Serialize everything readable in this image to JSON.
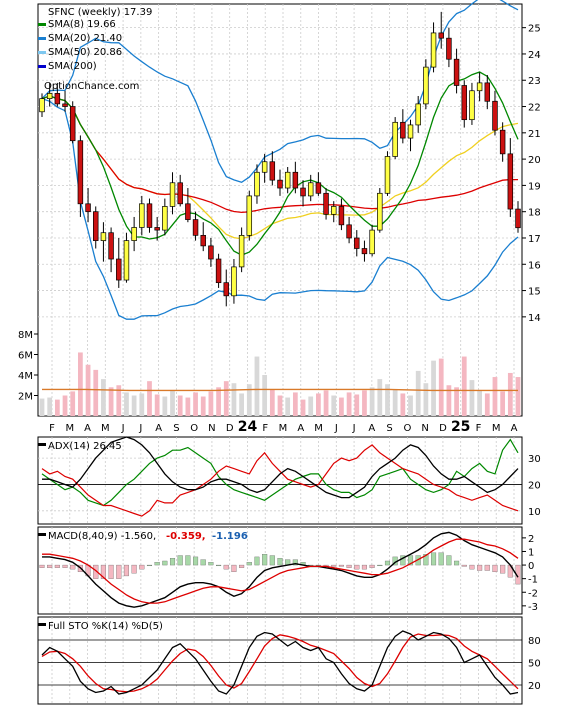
{
  "chart_data": {
    "type": "financial-multi-panel",
    "ticker": "SFNC",
    "period": "weekly",
    "last": "17.39",
    "title": "SFNC (weekly) 17.39",
    "watermark": "OptionChance.com",
    "price_panel": {
      "legend": [
        {
          "label": "SMA(8)",
          "value": "19.66",
          "color": "#008800"
        },
        {
          "label": "SMA(20)",
          "value": "21.40",
          "color": "#1a7fd0"
        },
        {
          "label": "SMA(50)",
          "value": "20.86",
          "color": "#7ec8f0"
        },
        {
          "label": "SMA(200)",
          "value": "",
          "color": "#0000cc"
        }
      ],
      "ylim": [
        13.5,
        25.9
      ],
      "y_ticks": [
        "25",
        "24",
        "23",
        "22",
        "21",
        "20",
        "19",
        "18",
        "17",
        "16",
        "15",
        "14"
      ],
      "candles": [
        [
          21.8,
          22.5,
          21.6,
          22.3
        ],
        [
          22.3,
          22.9,
          22.0,
          22.5
        ],
        [
          22.5,
          22.9,
          22.0,
          22.1
        ],
        [
          22.1,
          22.6,
          21.8,
          22.0
        ],
        [
          22.0,
          22.2,
          20.6,
          20.7
        ],
        [
          20.7,
          20.9,
          17.8,
          18.3
        ],
        [
          18.3,
          18.9,
          17.6,
          18.0
        ],
        [
          18.0,
          18.2,
          16.6,
          16.9
        ],
        [
          16.9,
          17.6,
          16.1,
          17.2
        ],
        [
          17.2,
          17.4,
          15.7,
          16.2
        ],
        [
          16.2,
          17.0,
          15.1,
          15.4
        ],
        [
          15.4,
          17.2,
          15.3,
          16.9
        ],
        [
          16.9,
          17.8,
          16.5,
          17.4
        ],
        [
          17.4,
          18.6,
          17.1,
          18.3
        ],
        [
          18.3,
          18.5,
          17.2,
          17.4
        ],
        [
          17.4,
          17.8,
          16.9,
          17.3
        ],
        [
          17.3,
          18.5,
          17.1,
          18.2
        ],
        [
          18.2,
          19.5,
          17.9,
          19.1
        ],
        [
          19.1,
          19.4,
          18.2,
          18.3
        ],
        [
          18.3,
          18.9,
          17.6,
          17.7
        ],
        [
          17.7,
          18.0,
          16.9,
          17.1
        ],
        [
          17.1,
          17.6,
          16.5,
          16.7
        ],
        [
          16.7,
          17.0,
          15.9,
          16.2
        ],
        [
          16.2,
          16.4,
          15.1,
          15.3
        ],
        [
          15.3,
          15.8,
          14.4,
          14.8
        ],
        [
          14.8,
          16.2,
          14.5,
          15.9
        ],
        [
          15.9,
          17.4,
          15.7,
          17.1
        ],
        [
          17.1,
          18.8,
          16.9,
          18.6
        ],
        [
          18.6,
          19.8,
          18.3,
          19.5
        ],
        [
          19.5,
          20.2,
          19.1,
          19.9
        ],
        [
          19.9,
          20.3,
          19.0,
          19.2
        ],
        [
          19.2,
          19.6,
          18.6,
          18.9
        ],
        [
          18.9,
          19.7,
          18.7,
          19.5
        ],
        [
          19.5,
          19.9,
          18.7,
          18.9
        ],
        [
          18.9,
          19.2,
          18.2,
          18.6
        ],
        [
          18.6,
          19.4,
          18.4,
          19.1
        ],
        [
          19.1,
          19.5,
          18.6,
          18.7
        ],
        [
          18.7,
          18.9,
          17.7,
          17.9
        ],
        [
          17.9,
          18.4,
          17.6,
          18.2
        ],
        [
          18.2,
          18.5,
          17.3,
          17.5
        ],
        [
          17.5,
          17.8,
          16.8,
          17.0
        ],
        [
          17.0,
          17.3,
          16.3,
          16.6
        ],
        [
          16.6,
          16.9,
          16.1,
          16.4
        ],
        [
          16.4,
          17.5,
          16.3,
          17.3
        ],
        [
          17.3,
          18.9,
          17.2,
          18.7
        ],
        [
          18.7,
          20.3,
          18.6,
          20.1
        ],
        [
          20.1,
          21.6,
          20.0,
          21.4
        ],
        [
          21.4,
          21.9,
          20.6,
          20.8
        ],
        [
          20.8,
          21.5,
          20.3,
          21.3
        ],
        [
          21.3,
          22.4,
          21.0,
          22.1
        ],
        [
          22.1,
          23.8,
          21.9,
          23.5
        ],
        [
          23.5,
          25.2,
          23.3,
          24.8
        ],
        [
          24.8,
          25.6,
          24.2,
          24.6
        ],
        [
          24.6,
          25.0,
          23.5,
          23.8
        ],
        [
          23.8,
          24.2,
          22.5,
          22.8
        ],
        [
          22.8,
          23.0,
          21.2,
          21.5
        ],
        [
          21.5,
          22.9,
          21.3,
          22.6
        ],
        [
          22.6,
          23.3,
          22.2,
          22.9
        ],
        [
          22.9,
          23.2,
          21.9,
          22.2
        ],
        [
          22.2,
          22.6,
          20.9,
          21.1
        ],
        [
          21.1,
          21.4,
          19.9,
          20.2
        ],
        [
          20.2,
          20.8,
          17.8,
          18.1
        ],
        [
          18.1,
          18.4,
          17.2,
          17.39
        ]
      ],
      "x_labels": [
        "F",
        "M",
        "A",
        "M",
        "J",
        "J",
        "A",
        "S",
        "O",
        "N",
        "D",
        "24",
        "F",
        "M",
        "A",
        "M",
        "J",
        "J",
        "A",
        "S",
        "O",
        "N",
        "D",
        "25",
        "F",
        "M",
        "A"
      ]
    },
    "volume_panel": {
      "ylim": [
        0,
        8
      ],
      "y_ticks": [
        "8M",
        "6M",
        "4M",
        "2M"
      ],
      "values": [
        1.7,
        1.8,
        1.6,
        2.0,
        2.4,
        6.2,
        5.0,
        4.5,
        3.6,
        2.8,
        3.0,
        2.3,
        2.0,
        2.2,
        3.4,
        2.1,
        1.9,
        2.5,
        2.0,
        1.8,
        2.3,
        1.9,
        2.4,
        2.8,
        3.4,
        3.2,
        2.2,
        3.1,
        5.8,
        4.0,
        2.6,
        2.0,
        1.8,
        2.3,
        1.6,
        1.9,
        2.2,
        2.5,
        2.0,
        1.8,
        2.3,
        2.1,
        2.5,
        2.8,
        3.6,
        3.1,
        2.6,
        2.2,
        2.0,
        4.4,
        3.2,
        5.4,
        5.6,
        3.0,
        2.8,
        5.8,
        3.5,
        2.5,
        2.2,
        3.8,
        2.4,
        4.2,
        3.8
      ],
      "avg_line": [
        2.6,
        2.6,
        2.5,
        2.5,
        2.5,
        2.6,
        2.6,
        2.6,
        2.6,
        2.5,
        2.5,
        2.5
      ]
    },
    "adx_panel": {
      "label": "ADX(14) 26.45",
      "ylim": [
        5,
        38
      ],
      "y_ticks": [
        "30",
        "20",
        "10"
      ],
      "adx": [
        22,
        22,
        21,
        20,
        19,
        22,
        26,
        30,
        33,
        36,
        37,
        38,
        37,
        35,
        32,
        28,
        24,
        21,
        19,
        18,
        18,
        19,
        21,
        22,
        22,
        21,
        20,
        18,
        17,
        18,
        21,
        24,
        26,
        25,
        23,
        21,
        19,
        17,
        16,
        15,
        15,
        17,
        19,
        23,
        26,
        28,
        30,
        33,
        35,
        34,
        31,
        27,
        24,
        22,
        22,
        23,
        21,
        19,
        17,
        18,
        20,
        23,
        26
      ],
      "plus_di": [
        24,
        22,
        20,
        18,
        19,
        17,
        14,
        13,
        12,
        14,
        17,
        20,
        22,
        25,
        28,
        30,
        31,
        33,
        33,
        34,
        32,
        30,
        28,
        23,
        20,
        18,
        17,
        16,
        15,
        14,
        16,
        18,
        20,
        22,
        23,
        24,
        24,
        20,
        18,
        17,
        17,
        15,
        16,
        18,
        23,
        24,
        25,
        26,
        22,
        20,
        18,
        17,
        18,
        20,
        25,
        23,
        26,
        28,
        25,
        24,
        33,
        37,
        32
      ],
      "minus_di": [
        26,
        24,
        25,
        23,
        22,
        19,
        16,
        14,
        12,
        12,
        11,
        10,
        9,
        8,
        10,
        14,
        13,
        13,
        16,
        17,
        18,
        20,
        22,
        25,
        27,
        26,
        25,
        24,
        29,
        32,
        28,
        25,
        22,
        21,
        20,
        19,
        20,
        24,
        28,
        30,
        29,
        30,
        33,
        35,
        32,
        30,
        28,
        26,
        25,
        24,
        22,
        20,
        19,
        18,
        16,
        15,
        14,
        15,
        16,
        14,
        12,
        11,
        10
      ]
    },
    "macd_panel": {
      "label": "MACD(8,40,9)",
      "values": [
        "-1.560",
        "-0.359",
        "-1.196"
      ],
      "ylim": [
        -3.6,
        2.8
      ],
      "y_ticks": [
        "2",
        "1",
        "0",
        "-1",
        "-2",
        "-3"
      ],
      "macd": [
        0.6,
        0.6,
        0.5,
        0.4,
        0.2,
        -0.2,
        -0.8,
        -1.4,
        -1.9,
        -2.4,
        -2.8,
        -3.0,
        -3.1,
        -3.0,
        -2.8,
        -2.6,
        -2.4,
        -2.0,
        -1.6,
        -1.4,
        -1.3,
        -1.3,
        -1.4,
        -1.6,
        -2.0,
        -2.3,
        -2.1,
        -1.6,
        -0.9,
        -0.4,
        -0.2,
        -0.1,
        0.0,
        0.1,
        0.0,
        -0.1,
        -0.1,
        -0.2,
        -0.3,
        -0.4,
        -0.6,
        -0.8,
        -0.9,
        -0.9,
        -0.7,
        -0.3,
        0.2,
        0.5,
        0.8,
        1.1,
        1.5,
        2.0,
        2.3,
        2.4,
        2.2,
        1.8,
        1.5,
        1.3,
        1.1,
        0.9,
        0.6,
        0.0,
        -0.9
      ],
      "signal": [
        0.8,
        0.8,
        0.7,
        0.6,
        0.5,
        0.3,
        0.0,
        -0.4,
        -0.9,
        -1.4,
        -1.8,
        -2.2,
        -2.5,
        -2.7,
        -2.8,
        -2.8,
        -2.7,
        -2.5,
        -2.3,
        -2.1,
        -1.9,
        -1.7,
        -1.6,
        -1.6,
        -1.7,
        -1.8,
        -1.9,
        -1.8,
        -1.5,
        -1.2,
        -0.9,
        -0.6,
        -0.4,
        -0.3,
        -0.2,
        -0.1,
        -0.1,
        -0.1,
        -0.2,
        -0.3,
        -0.4,
        -0.5,
        -0.6,
        -0.7,
        -0.7,
        -0.6,
        -0.4,
        -0.2,
        0.1,
        0.4,
        0.7,
        1.1,
        1.4,
        1.7,
        1.9,
        1.9,
        1.8,
        1.7,
        1.5,
        1.4,
        1.2,
        0.9,
        0.5
      ]
    },
    "stoch_panel": {
      "label": "Full STO %K(14) %D(5)",
      "ylim": [
        0,
        100
      ],
      "y_ticks": [
        "80",
        "50",
        "20"
      ],
      "k": [
        60,
        70,
        65,
        55,
        45,
        25,
        15,
        10,
        12,
        18,
        8,
        10,
        15,
        20,
        30,
        40,
        55,
        70,
        75,
        65,
        55,
        40,
        25,
        12,
        8,
        20,
        45,
        70,
        85,
        90,
        88,
        80,
        72,
        78,
        70,
        66,
        70,
        55,
        50,
        35,
        22,
        15,
        12,
        20,
        45,
        70,
        85,
        92,
        88,
        80,
        85,
        90,
        88,
        82,
        70,
        50,
        55,
        60,
        45,
        30,
        20,
        8,
        10
      ],
      "d": [
        58,
        64,
        65,
        62,
        55,
        45,
        32,
        22,
        15,
        14,
        12,
        11,
        12,
        15,
        20,
        28,
        40,
        52,
        62,
        68,
        66,
        58,
        46,
        32,
        20,
        16,
        22,
        38,
        55,
        72,
        82,
        87,
        85,
        82,
        78,
        73,
        70,
        66,
        62,
        52,
        42,
        30,
        22,
        18,
        22,
        35,
        52,
        70,
        84,
        88,
        86,
        86,
        87,
        86,
        82,
        72,
        65,
        60,
        55,
        45,
        35,
        25,
        15
      ]
    }
  }
}
